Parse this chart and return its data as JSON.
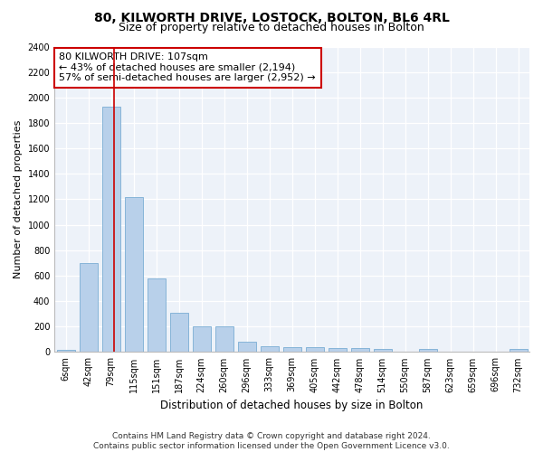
{
  "title1": "80, KILWORTH DRIVE, LOSTOCK, BOLTON, BL6 4RL",
  "title2": "Size of property relative to detached houses in Bolton",
  "xlabel": "Distribution of detached houses by size in Bolton",
  "ylabel": "Number of detached properties",
  "categories": [
    "6sqm",
    "42sqm",
    "79sqm",
    "115sqm",
    "151sqm",
    "187sqm",
    "224sqm",
    "260sqm",
    "296sqm",
    "333sqm",
    "369sqm",
    "405sqm",
    "442sqm",
    "478sqm",
    "514sqm",
    "550sqm",
    "587sqm",
    "623sqm",
    "659sqm",
    "696sqm",
    "732sqm"
  ],
  "values": [
    15,
    700,
    1930,
    1220,
    575,
    305,
    200,
    200,
    80,
    48,
    38,
    38,
    30,
    30,
    22,
    0,
    22,
    0,
    0,
    0,
    22
  ],
  "bar_color": "#b8d0ea",
  "bar_edge_color": "#7aadd4",
  "vline_x_index": 2,
  "vline_color": "#cc0000",
  "annotation_text": "80 KILWORTH DRIVE: 107sqm\n← 43% of detached houses are smaller (2,194)\n57% of semi-detached houses are larger (2,952) →",
  "ylim": [
    0,
    2400
  ],
  "yticks": [
    0,
    200,
    400,
    600,
    800,
    1000,
    1200,
    1400,
    1600,
    1800,
    2000,
    2200,
    2400
  ],
  "footer": "Contains HM Land Registry data © Crown copyright and database right 2024.\nContains public sector information licensed under the Open Government Licence v3.0.",
  "bg_color": "#edf2f9",
  "grid_color": "#ffffff",
  "title1_fontsize": 10,
  "title2_fontsize": 9,
  "xlabel_fontsize": 8.5,
  "ylabel_fontsize": 8,
  "tick_fontsize": 7,
  "annotation_fontsize": 8,
  "footer_fontsize": 6.5
}
